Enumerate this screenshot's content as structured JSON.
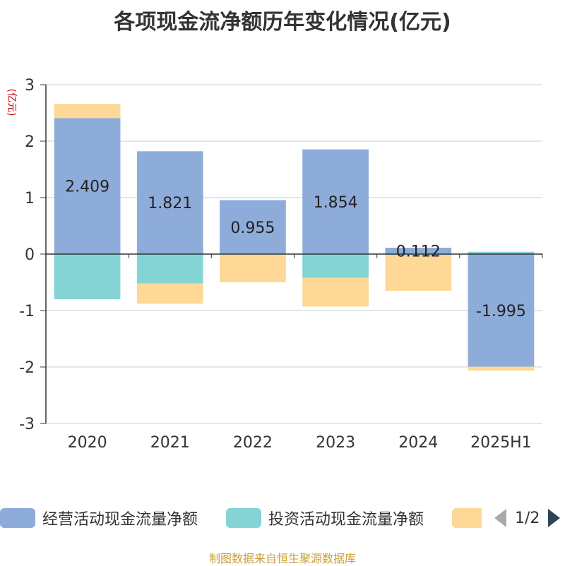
{
  "chart_data": {
    "type": "bar",
    "stacked": true,
    "title": "各项现金流净额历年变化情况(亿元)",
    "ylabel": "(亿元)",
    "xlabel": "",
    "ylim": [
      -3,
      3
    ],
    "yticks": [
      -3,
      -2,
      -1,
      0,
      1,
      2,
      3
    ],
    "grid": true,
    "categories": [
      "2020",
      "2021",
      "2022",
      "2023",
      "2024",
      "2025H1"
    ],
    "series": [
      {
        "name": "经营活动现金流量净额",
        "color": "#8eacd9",
        "values": [
          2.409,
          1.821,
          0.955,
          1.854,
          0.112,
          -1.995
        ],
        "labels": [
          "2.409",
          "1.821",
          "0.955",
          "1.854",
          "0.112",
          "-1.995"
        ]
      },
      {
        "name": "投资活动现金流量净额",
        "color": "#84d4d6",
        "values": [
          -0.8,
          -0.52,
          -0.01,
          -0.42,
          -0.02,
          0.04
        ]
      },
      {
        "name": "",
        "color": "#fed897",
        "values": [
          0.25,
          -0.36,
          -0.49,
          -0.51,
          -0.63,
          -0.07
        ]
      }
    ]
  },
  "legend": {
    "items": [
      {
        "label": "经营活动现金流量净额",
        "color": "#8eacd9"
      },
      {
        "label": "投资活动现金流量净额",
        "color": "#84d4d6"
      },
      {
        "label": "",
        "color": "#fed897"
      }
    ],
    "page": "1/2"
  },
  "source": "制图数据来自恒生聚源数据库"
}
